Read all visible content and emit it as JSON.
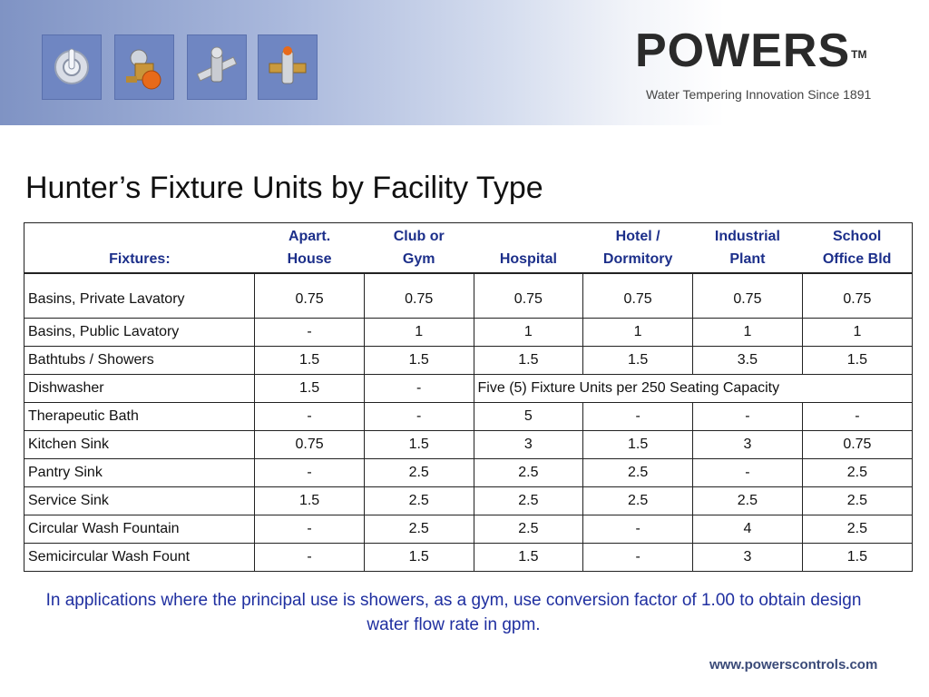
{
  "brand": {
    "name": "POWERS",
    "tm": "TM",
    "tagline": "Water Tempering Innovation Since 1891",
    "url": "www.powerscontrols.com"
  },
  "banner_icons": [
    "shower-valve-icon",
    "mixing-valve-icon",
    "pipe-fitting-icon",
    "thermostatic-valve-icon"
  ],
  "title": "Hunter’s Fixture Units by Facility Type",
  "table": {
    "headers": [
      {
        "l1": "",
        "l2": "Fixtures:"
      },
      {
        "l1": "Apart.",
        "l2": "House"
      },
      {
        "l1": "Club or",
        "l2": "Gym"
      },
      {
        "l1": "",
        "l2": "Hospital"
      },
      {
        "l1": "Hotel /",
        "l2": "Dormitory"
      },
      {
        "l1": "Industrial",
        "l2": "Plant"
      },
      {
        "l1": "School",
        "l2": "Office Bld"
      }
    ],
    "rows": [
      {
        "fixture": "Basins, Private Lavatory",
        "values": [
          "0.75",
          "0.75",
          "0.75",
          "0.75",
          "0.75",
          "0.75"
        ]
      },
      {
        "fixture": "Basins, Public Lavatory",
        "values": [
          "-",
          "1",
          "1",
          "1",
          "1",
          "1"
        ]
      },
      {
        "fixture": "Bathtubs / Showers",
        "values": [
          "1.5",
          "1.5",
          "1.5",
          "1.5",
          "3.5",
          "1.5"
        ]
      },
      {
        "fixture": "Dishwasher",
        "values": [
          "1.5",
          "-"
        ],
        "span_text": "Five (5) Fixture Units per 250 Seating Capacity"
      },
      {
        "fixture": "Therapeutic Bath",
        "values": [
          "-",
          "-",
          "5",
          "-",
          "-",
          "-"
        ]
      },
      {
        "fixture": "Kitchen Sink",
        "values": [
          "0.75",
          "1.5",
          "3",
          "1.5",
          "3",
          "0.75"
        ]
      },
      {
        "fixture": "Pantry Sink",
        "values": [
          "-",
          "2.5",
          "2.5",
          "2.5",
          "-",
          "2.5"
        ]
      },
      {
        "fixture": "Service Sink",
        "values": [
          "1.5",
          "2.5",
          "2.5",
          "2.5",
          "2.5",
          "2.5"
        ]
      },
      {
        "fixture": "Circular Wash Fountain",
        "values": [
          "-",
          "2.5",
          "2.5",
          "-",
          "4",
          "2.5"
        ]
      },
      {
        "fixture": "Semicircular Wash Fount",
        "values": [
          "-",
          "1.5",
          "1.5",
          "-",
          "3",
          "1.5"
        ]
      }
    ]
  },
  "note": "In applications where the principal use is showers, as a gym, use conversion factor of 1.00 to obtain design water flow rate in gpm.",
  "colors": {
    "header_text": "#1c2f8a",
    "note_text": "#1f2fa0",
    "banner": "#7f93c4"
  }
}
